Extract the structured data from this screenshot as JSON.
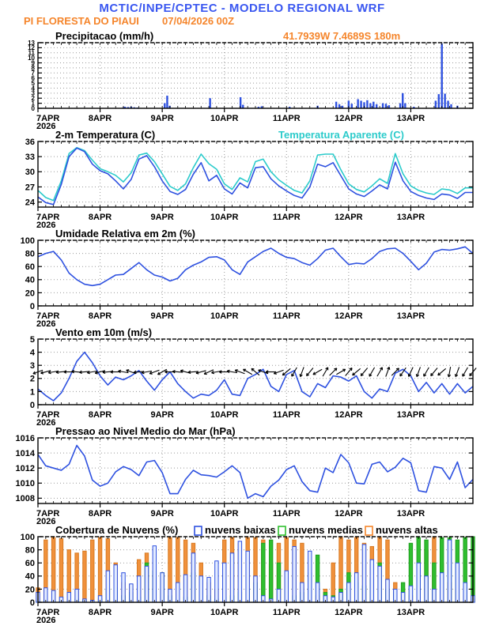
{
  "header": {
    "line1": "MCTIC/INPE/CPTEC - MODELO REGIONAL WRF",
    "station": "PI FLORESTA DO PIAUI",
    "run": "07/04/2026 00Z"
  },
  "colors": {
    "header-blue": "#3a57f0",
    "line-blue": "#2e51e0",
    "cyan": "#2bcbcb",
    "orange": "#f5852b",
    "green": "#2fbf2f",
    "grid": "#999999"
  },
  "x_axis": {
    "days": 7,
    "step_days": 0.125,
    "labels": [
      "7APR",
      "8APR",
      "9APR",
      "10APR",
      "11APR",
      "12APR",
      "13APR"
    ],
    "year": "2026"
  },
  "chart_data": [
    {
      "id": "precipitation",
      "type": "bar",
      "title": "Precipitacao (mm/h)",
      "title2": "41.7939W 7.4689S 180m",
      "ylim": [
        0,
        13
      ],
      "yticks": [
        0,
        1,
        2,
        3,
        4,
        5,
        6,
        7,
        8,
        9,
        10,
        11,
        12,
        13
      ],
      "series": [
        {
          "name": "precipitation-bars",
          "type": "bars_sparse",
          "color": "#2e51e0",
          "times": [
            1.375,
            1.4,
            1.45,
            1.5,
            1.55,
            1.6,
            2.04,
            2.08,
            2.12,
            2.77,
            3.26,
            3.3,
            3.55,
            3.6,
            4.05,
            4.5,
            4.8,
            4.85,
            4.9,
            5.0,
            5.05,
            5.15,
            5.2,
            5.25,
            5.3,
            5.35,
            5.4,
            5.45,
            5.55,
            5.6,
            5.65,
            5.83,
            5.87,
            5.91,
            6.05,
            6.4,
            6.45,
            6.5,
            6.55,
            6.6,
            6.65,
            6.75
          ],
          "values": [
            0.2,
            0.3,
            0.25,
            0.3,
            0.2,
            0.15,
            1.0,
            2.5,
            0.5,
            2.0,
            2.2,
            0.7,
            0.3,
            0.4,
            0.3,
            0.5,
            1.3,
            0.8,
            0.5,
            1.5,
            0.9,
            1.8,
            1.5,
            1.2,
            1.6,
            1.0,
            1.3,
            0.8,
            1.0,
            0.9,
            0.6,
            1.0,
            3.0,
            1.0,
            0.3,
            1.5,
            2.8,
            12.8,
            2.9,
            1.5,
            0.8,
            0.5
          ]
        }
      ]
    },
    {
      "id": "temperature-2m",
      "type": "line",
      "title": "2-m Temperatura (C)",
      "title2": "Temperatura Aparente (C)",
      "ylim": [
        23,
        36
      ],
      "yticks": [
        24,
        27,
        30,
        33,
        36
      ],
      "series": [
        {
          "name": "apparent-temperature-line",
          "type": "line",
          "color": "#2bcbcb",
          "step_days": 0.125,
          "values": [
            26.3,
            24.9,
            24.3,
            28.2,
            33.6,
            34.8,
            34.2,
            32.3,
            30.6,
            30.0,
            29.3,
            28.0,
            29.8,
            33.3,
            33.7,
            32.0,
            29.6,
            27.1,
            26.3,
            27.6,
            30.8,
            33.5,
            31.6,
            30.5,
            27.6,
            26.5,
            28.8,
            28.0,
            32.0,
            32.5,
            30.0,
            28.4,
            27.3,
            26.3,
            25.8,
            28.2,
            33.3,
            33.5,
            33.5,
            30.4,
            27.6,
            26.5,
            26.0,
            27.2,
            28.6,
            27.7,
            33.6,
            29.6,
            27.2,
            26.3,
            25.8,
            25.5,
            26.6,
            26.4,
            25.7,
            26.8,
            26.8
          ]
        },
        {
          "name": "temperature-2m-line",
          "type": "line",
          "color": "#2e51e0",
          "step_days": 0.125,
          "values": [
            25.0,
            23.9,
            23.5,
            27.5,
            33.0,
            34.7,
            34.0,
            31.5,
            30.2,
            29.6,
            28.2,
            26.6,
            28.5,
            32.5,
            33.2,
            31.0,
            28.2,
            26.1,
            25.5,
            26.5,
            29.5,
            31.8,
            28.2,
            29.3,
            26.6,
            25.6,
            27.8,
            26.8,
            30.8,
            31.0,
            28.6,
            27.2,
            26.2,
            25.3,
            24.8,
            27.0,
            31.5,
            31.0,
            31.8,
            29.2,
            26.6,
            25.6,
            25.1,
            26.2,
            27.4,
            26.6,
            31.9,
            28.2,
            26.1,
            25.3,
            24.8,
            24.5,
            25.6,
            25.4,
            24.7,
            25.9,
            25.9
          ]
        }
      ]
    },
    {
      "id": "relative-humidity-2m",
      "type": "line",
      "title": "Umidade Relativa em 2m (%)",
      "title2": "",
      "ylim": [
        0,
        100
      ],
      "yticks": [
        0,
        20,
        40,
        60,
        80,
        100
      ],
      "series": [
        {
          "name": "humidity-line",
          "type": "line",
          "color": "#2e51e0",
          "step_days": 0.125,
          "values": [
            75,
            80,
            83,
            70,
            50,
            40,
            33,
            31,
            33,
            40,
            47,
            48,
            57,
            66,
            55,
            47,
            44,
            38,
            42,
            55,
            62,
            67,
            74,
            75,
            70,
            55,
            48,
            67,
            75,
            83,
            88,
            80,
            74,
            72,
            66,
            62,
            72,
            85,
            88,
            75,
            63,
            65,
            64,
            72,
            83,
            87,
            88,
            80,
            68,
            55,
            65,
            82,
            86,
            85,
            87,
            90,
            80
          ]
        }
      ]
    },
    {
      "id": "wind-10m",
      "type": "line",
      "title": "Vento em 10m (m/s)",
      "title2": "",
      "ylim": [
        0,
        5
      ],
      "yticks": [
        0,
        1,
        2,
        3,
        4,
        5
      ],
      "series": [
        {
          "name": "wind-speed-line",
          "type": "line",
          "color": "#2e51e0",
          "step_days": 0.125,
          "values": [
            1.2,
            0.7,
            0.3,
            0.9,
            2.0,
            3.3,
            4.0,
            3.2,
            2.2,
            1.5,
            2.1,
            1.9,
            2.2,
            2.6,
            1.8,
            1.1,
            1.9,
            2.5,
            1.6,
            1.0,
            0.5,
            0.8,
            0.7,
            1.1,
            1.9,
            0.8,
            0.7,
            2.0,
            2.3,
            2.7,
            1.4,
            1.0,
            2.3,
            2.6,
            1.0,
            0.6,
            1.6,
            1.3,
            2.2,
            2.1,
            1.8,
            2.2,
            1.0,
            0.5,
            1.2,
            1.0,
            2.4,
            2.7,
            2.2,
            1.0,
            1.7,
            0.9,
            1.6,
            0.8,
            1.6,
            0.9,
            1.4
          ]
        },
        {
          "name": "wind-direction-barbs",
          "type": "wind_barbs",
          "color": "#000000",
          "y_value": 2.5,
          "step_days": 0.125,
          "angles_deg": [
            200,
            195,
            190,
            185,
            180,
            175,
            185,
            190,
            195,
            185,
            180,
            170,
            160,
            185,
            190,
            200,
            210,
            180,
            175,
            165,
            185,
            195,
            205,
            190,
            180,
            170,
            160,
            150,
            140,
            160,
            180,
            200,
            220,
            240,
            250,
            230,
            210,
            60,
            45,
            30,
            50,
            220,
            230,
            240,
            60,
            70,
            45,
            235,
            245,
            250,
            240,
            230,
            220,
            260,
            250,
            240,
            230
          ]
        }
      ]
    },
    {
      "id": "mean-sea-level-pressure",
      "type": "line",
      "title": "Pressao ao Nivel Medio do Mar (hPa)",
      "title2": "",
      "ylim": [
        1007.3,
        1016
      ],
      "yticks": [
        1008,
        1010,
        1012,
        1014,
        1016
      ],
      "series": [
        {
          "name": "pressure-line",
          "type": "line",
          "color": "#2e51e0",
          "step_days": 0.125,
          "values": [
            1013.8,
            1012.3,
            1012.0,
            1011.7,
            1012.5,
            1015.0,
            1013.6,
            1010.4,
            1009.6,
            1010.0,
            1011.5,
            1012.2,
            1011.8,
            1011.0,
            1012.8,
            1013.0,
            1011.4,
            1008.6,
            1008.6,
            1010.5,
            1011.7,
            1011.1,
            1011.0,
            1010.8,
            1011.5,
            1012.3,
            1011.4,
            1008.0,
            1008.6,
            1008.2,
            1009.6,
            1010.4,
            1011.8,
            1012.3,
            1010.2,
            1009.0,
            1008.8,
            1012.0,
            1011.4,
            1013.8,
            1012.7,
            1010.0,
            1009.9,
            1012.5,
            1012.8,
            1011.5,
            1012.1,
            1013.3,
            1012.7,
            1009.0,
            1008.8,
            1012.2,
            1012.0,
            1010.5,
            1012.8,
            1009.4,
            1010.5
          ]
        }
      ]
    },
    {
      "id": "cloud-cover",
      "type": "bar",
      "title": "Cobertura de Nuvens (%)",
      "title2": "",
      "ylim": [
        0,
        100
      ],
      "yticks": [
        0,
        20,
        40,
        60,
        80,
        100
      ],
      "legend": [
        {
          "label": "nuvens baixas",
          "color": "#2e51e0"
        },
        {
          "label": "nuvens medias",
          "color": "#2fbf2f"
        },
        {
          "label": "nuvens altas",
          "color": "#f5852b"
        }
      ],
      "series": [
        {
          "name": "high-clouds-bars",
          "type": "bars",
          "color": "#d97a20",
          "fill": "#f0913c",
          "step_days": 0.125,
          "values": [
            22,
            95,
            100,
            97,
            80,
            75,
            78,
            95,
            100,
            97,
            60,
            30,
            27,
            65,
            75,
            40,
            20,
            100,
            100,
            95,
            90,
            60,
            30,
            20,
            95,
            100,
            90,
            100,
            100,
            95,
            60,
            90,
            100,
            95,
            90,
            30,
            10,
            20,
            60,
            100,
            95,
            100,
            90,
            85,
            100,
            95,
            30,
            20,
            10,
            30,
            80,
            100,
            60,
            30,
            20,
            10,
            5
          ]
        },
        {
          "name": "mid-clouds-bars",
          "type": "bars",
          "color": "#1f9f1f",
          "fill": "#2fbf2f",
          "step_days": 0.125,
          "values": [
            2,
            3,
            2,
            2,
            3,
            5,
            3,
            2,
            5,
            20,
            22,
            10,
            15,
            8,
            60,
            48,
            45,
            10,
            5,
            8,
            45,
            20,
            10,
            5,
            8,
            10,
            15,
            20,
            30,
            90,
            95,
            60,
            20,
            10,
            15,
            45,
            72,
            15,
            10,
            20,
            45,
            30,
            25,
            35,
            60,
            20,
            15,
            30,
            90,
            100,
            95,
            60,
            100,
            100,
            95,
            100,
            100
          ]
        },
        {
          "name": "low-clouds-bars",
          "type": "bars",
          "color": "#2e51e0",
          "fill": "#e4ecff",
          "step_days": 0.125,
          "values": [
            15,
            22,
            18,
            8,
            15,
            20,
            5,
            3,
            10,
            48,
            57,
            45,
            28,
            40,
            55,
            86,
            45,
            20,
            30,
            42,
            75,
            40,
            38,
            63,
            60,
            75,
            93,
            78,
            40,
            10,
            5,
            20,
            48,
            85,
            30,
            78,
            30,
            10,
            8,
            15,
            30,
            45,
            88,
            65,
            55,
            35,
            20,
            15,
            25,
            60,
            40,
            20,
            45,
            95,
            60,
            30,
            10
          ]
        }
      ]
    }
  ]
}
